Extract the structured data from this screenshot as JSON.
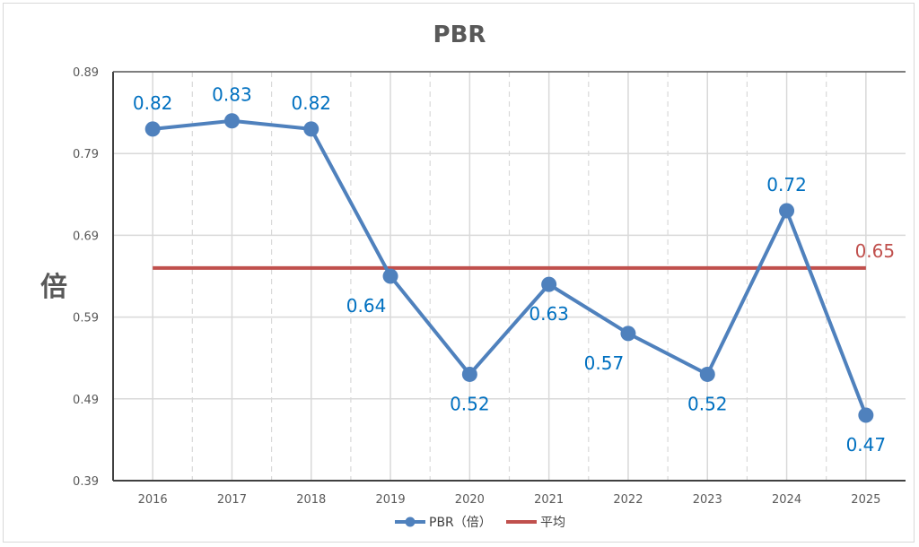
{
  "chart_data": {
    "type": "line",
    "title": "PBR",
    "ylabel": "倍",
    "xlabel": "",
    "categories": [
      "2016",
      "2017",
      "2018",
      "2019",
      "2020",
      "2021",
      "2022",
      "2023",
      "2024",
      "2025"
    ],
    "series": [
      {
        "name": "PBR（倍）",
        "values": [
          0.82,
          0.83,
          0.82,
          0.64,
          0.52,
          0.63,
          0.57,
          0.52,
          0.72,
          0.47
        ],
        "color": "#4f81bd",
        "label_position": [
          "above",
          "above",
          "above",
          "below-left",
          "below",
          "below",
          "below-left",
          "below",
          "above",
          "below"
        ],
        "label_color": "#0070c0"
      },
      {
        "name": "平均",
        "value": 0.65,
        "color": "#c0504d",
        "label": "0.65"
      }
    ],
    "ylim": [
      0.39,
      0.89
    ],
    "yticks": [
      "0.39",
      "0.49",
      "0.59",
      "0.69",
      "0.79",
      "0.89"
    ],
    "grid": true,
    "legend": "bottom"
  }
}
